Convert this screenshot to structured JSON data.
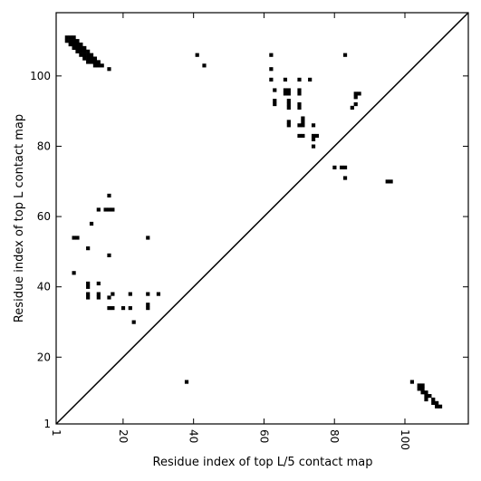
{
  "chart_data": {
    "type": "heatmap",
    "title": "",
    "xlabel": "Residue index of top L/5 contact map",
    "ylabel": "Residue index of top L contact map",
    "xlim": [
      1,
      118
    ],
    "ylim": [
      1,
      118
    ],
    "x_ticks": [
      {
        "value": 1,
        "label": "1"
      },
      {
        "value": 20,
        "label": "20"
      },
      {
        "value": 40,
        "label": "40"
      },
      {
        "value": 60,
        "label": "60"
      },
      {
        "value": 80,
        "label": "80"
      },
      {
        "value": 100,
        "label": "100"
      }
    ],
    "y_ticks": [
      {
        "value": 1,
        "label": "1"
      },
      {
        "value": 20,
        "label": "20"
      },
      {
        "value": 40,
        "label": "40"
      },
      {
        "value": 60,
        "label": "60"
      },
      {
        "value": 80,
        "label": "80"
      },
      {
        "value": 100,
        "label": "100"
      }
    ],
    "diagonal": true,
    "marker_color": "#000000",
    "upper_contacts": [
      [
        4,
        111
      ],
      [
        5,
        111
      ],
      [
        6,
        111
      ],
      [
        4,
        110
      ],
      [
        5,
        110
      ],
      [
        6,
        110
      ],
      [
        7,
        110
      ],
      [
        5,
        109
      ],
      [
        6,
        109
      ],
      [
        7,
        109
      ],
      [
        8,
        109
      ],
      [
        6,
        108
      ],
      [
        7,
        108
      ],
      [
        8,
        108
      ],
      [
        9,
        108
      ],
      [
        7,
        107
      ],
      [
        8,
        107
      ],
      [
        9,
        107
      ],
      [
        10,
        107
      ],
      [
        8,
        106
      ],
      [
        9,
        106
      ],
      [
        10,
        106
      ],
      [
        11,
        106
      ],
      [
        9,
        105
      ],
      [
        10,
        105
      ],
      [
        11,
        105
      ],
      [
        12,
        105
      ],
      [
        10,
        104
      ],
      [
        11,
        104
      ],
      [
        12,
        104
      ],
      [
        13,
        104
      ],
      [
        12,
        103
      ],
      [
        13,
        103
      ],
      [
        14,
        103
      ],
      [
        16,
        102
      ],
      [
        41,
        106
      ],
      [
        43,
        103
      ],
      [
        62,
        106
      ],
      [
        62,
        102
      ],
      [
        62,
        99
      ],
      [
        63,
        96
      ],
      [
        63,
        93
      ],
      [
        63,
        92
      ],
      [
        66,
        99
      ],
      [
        66,
        96
      ],
      [
        67,
        96
      ],
      [
        67,
        95
      ],
      [
        66,
        95
      ],
      [
        67,
        93
      ],
      [
        67,
        92
      ],
      [
        67,
        91
      ],
      [
        67,
        87
      ],
      [
        67,
        86
      ],
      [
        70,
        99
      ],
      [
        70,
        96
      ],
      [
        70,
        95
      ],
      [
        70,
        92
      ],
      [
        70,
        91
      ],
      [
        70,
        86
      ],
      [
        71,
        88
      ],
      [
        71,
        87
      ],
      [
        71,
        86
      ],
      [
        70,
        83
      ],
      [
        71,
        83
      ],
      [
        73,
        99
      ],
      [
        74,
        86
      ],
      [
        74,
        83
      ],
      [
        75,
        83
      ],
      [
        74,
        82
      ],
      [
        74,
        80
      ],
      [
        80,
        74
      ],
      [
        82,
        74
      ],
      [
        83,
        74
      ],
      [
        83,
        71
      ],
      [
        83,
        106
      ],
      [
        85,
        91
      ],
      [
        86,
        95
      ],
      [
        87,
        95
      ],
      [
        86,
        94
      ],
      [
        86,
        92
      ],
      [
        95,
        70
      ],
      [
        96,
        70
      ],
      [
        16,
        66
      ],
      [
        13,
        62
      ],
      [
        15,
        62
      ],
      [
        16,
        62
      ],
      [
        17,
        62
      ],
      [
        11,
        58
      ],
      [
        6,
        54
      ],
      [
        7,
        54
      ],
      [
        27,
        54
      ],
      [
        10,
        51
      ],
      [
        16,
        49
      ],
      [
        6,
        44
      ],
      [
        10,
        41
      ],
      [
        10,
        40
      ],
      [
        13,
        41
      ],
      [
        10,
        38
      ],
      [
        10,
        37
      ],
      [
        13,
        38
      ],
      [
        13,
        37
      ],
      [
        16,
        37
      ],
      [
        17,
        38
      ],
      [
        22,
        38
      ],
      [
        27,
        38
      ],
      [
        30,
        38
      ],
      [
        16,
        34
      ],
      [
        17,
        34
      ],
      [
        20,
        34
      ],
      [
        22,
        34
      ],
      [
        27,
        35
      ],
      [
        27,
        34
      ],
      [
        23,
        30
      ]
    ],
    "lower_contacts": [
      [
        38,
        13
      ],
      [
        102,
        13
      ],
      [
        104,
        12
      ],
      [
        105,
        12
      ],
      [
        104,
        11
      ],
      [
        105,
        11
      ],
      [
        105,
        10
      ],
      [
        106,
        10
      ],
      [
        106,
        9
      ],
      [
        107,
        9
      ],
      [
        106,
        8
      ],
      [
        108,
        8
      ],
      [
        108,
        7
      ],
      [
        109,
        7
      ],
      [
        109,
        6
      ],
      [
        110,
        6
      ]
    ]
  }
}
